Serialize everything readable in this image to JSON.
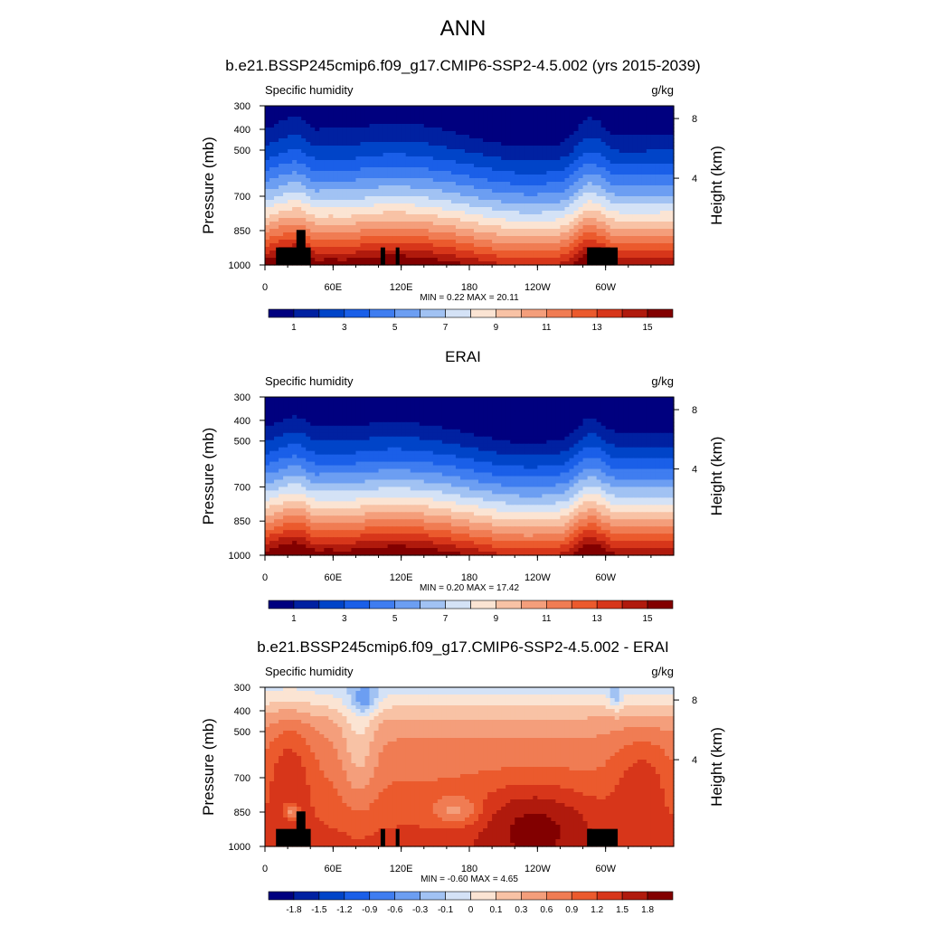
{
  "page": {
    "title": "ANN"
  },
  "colorbars": {
    "full": {
      "colors": [
        "#00007f",
        "#0021a1",
        "#0044c8",
        "#1a5fe8",
        "#3f7df0",
        "#6c9ef2",
        "#a1c2f3",
        "#d4e2f6",
        "#fbe4d3",
        "#f8c2a5",
        "#f49e7b",
        "#f07c53",
        "#eb5a2d",
        "#d7361a",
        "#b01a0d",
        "#820000"
      ],
      "labels": [
        "1",
        "3",
        "5",
        "7",
        "9",
        "11",
        "13",
        "15"
      ]
    },
    "diff": {
      "colors": [
        "#00007f",
        "#0021a1",
        "#0044c8",
        "#1a5fe8",
        "#3f7df0",
        "#6c9ef2",
        "#a1c2f3",
        "#d4e2f6",
        "#fbe4d3",
        "#f8c2a5",
        "#f49e7b",
        "#f07c53",
        "#eb5a2d",
        "#d7361a",
        "#b01a0d",
        "#820000"
      ],
      "labels": [
        "-1.8",
        "-1.5",
        "-1.2",
        "-0.9",
        "-0.6",
        "-0.3",
        "-0.1",
        "0",
        "0.1",
        "0.3",
        "0.6",
        "0.9",
        "1.2",
        "1.5",
        "1.8"
      ]
    }
  },
  "chart_data": [
    {
      "type": "heatmap",
      "title": "b.e21.BSSP245cmip6.f09_g17.CMIP6-SSP2-4.5.002 (yrs 2015-2039)",
      "variable": "Specific humidity",
      "units": "g/kg",
      "xlabel": "",
      "ylabel": "Pressure (mb)",
      "ylabel_right": "Height (km)",
      "x_ticks": [
        "0",
        "60E",
        "120E",
        "180",
        "120W",
        "60W"
      ],
      "y_ticks": [
        "300",
        "400",
        "500",
        "700",
        "850",
        "1000"
      ],
      "y_ticks_right": [
        "8",
        "4"
      ],
      "stats": {
        "min_label": "MIN =",
        "min": "0.22",
        "max_label": "MAX =",
        "max": "20.11"
      },
      "colorbar": "full"
    },
    {
      "type": "heatmap",
      "title": "ERAI",
      "variable": "Specific humidity",
      "units": "g/kg",
      "xlabel": "",
      "ylabel": "Pressure (mb)",
      "ylabel_right": "Height (km)",
      "x_ticks": [
        "0",
        "60E",
        "120E",
        "180",
        "120W",
        "60W"
      ],
      "y_ticks": [
        "300",
        "400",
        "500",
        "700",
        "850",
        "1000"
      ],
      "y_ticks_right": [
        "8",
        "4"
      ],
      "stats": {
        "min_label": "MIN =",
        "min": "0.20",
        "max_label": "MAX =",
        "max": "17.42"
      },
      "colorbar": "full"
    },
    {
      "type": "heatmap",
      "title": "b.e21.BSSP245cmip6.f09_g17.CMIP6-SSP2-4.5.002 - ERAI",
      "variable": "Specific humidity",
      "units": "g/kg",
      "xlabel": "",
      "ylabel": "Pressure (mb)",
      "ylabel_right": "Height (km)",
      "x_ticks": [
        "0",
        "60E",
        "120E",
        "180",
        "120W",
        "60W"
      ],
      "y_ticks": [
        "300",
        "400",
        "500",
        "700",
        "850",
        "1000"
      ],
      "y_ticks_right": [
        "8",
        "4"
      ],
      "stats": {
        "min_label": "MIN =",
        "min": "-0.60",
        "max_label": "MAX =",
        "max": "4.65"
      },
      "colorbar": "diff"
    }
  ]
}
